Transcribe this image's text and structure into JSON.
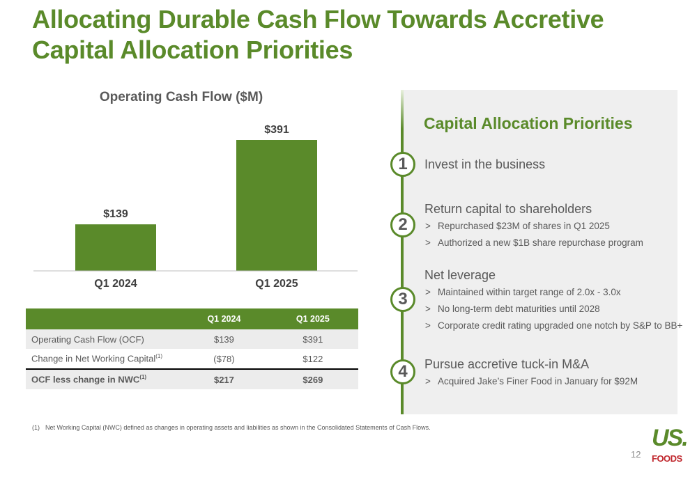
{
  "title": {
    "line1": "Allocating Durable Cash Flow Towards Accretive",
    "line2": "Capital Allocation Priorities"
  },
  "chart_data": {
    "type": "bar",
    "title": "Operating Cash Flow ($M)",
    "categories": [
      "Q1 2024",
      "Q1 2025"
    ],
    "values": [
      139,
      391
    ],
    "data_labels": [
      "$139",
      "$391"
    ],
    "xlabel": "",
    "ylabel": "",
    "ylim": [
      0,
      391
    ],
    "grid": false,
    "bar_color": "#5a8a2a"
  },
  "table": {
    "headers": [
      "",
      "Q1 2024",
      "Q1 2025"
    ],
    "rows": [
      {
        "label": "Operating Cash Flow (OCF)",
        "sup": "",
        "q1_2024": "$139",
        "q1_2025": "$391"
      },
      {
        "label": "Change in Net Working Capital",
        "sup": "(1)",
        "q1_2024": "($78)",
        "q1_2025": "$122"
      },
      {
        "label": "OCF less change in NWC",
        "sup": "(1)",
        "q1_2024": "$217",
        "q1_2025": "$269"
      }
    ]
  },
  "footnote": {
    "number": "(1)",
    "text": "Net Working Capital (NWC) defined as changes in operating assets and liabilities as shown in the Consolidated Statements of Cash Flows."
  },
  "priorities": {
    "title": "Capital Allocation Priorities",
    "items": [
      {
        "number": "1",
        "heading": "Invest in the business",
        "bullets": []
      },
      {
        "number": "2",
        "heading": "Return capital to shareholders",
        "bullets": [
          "Repurchased $23M of shares in Q1 2025",
          "Authorized a new $1B share repurchase program"
        ]
      },
      {
        "number": "3",
        "heading": "Net leverage",
        "bullets": [
          "Maintained within target range of 2.0x - 3.0x",
          "No long-term debt maturities until 2028",
          "Corporate credit rating upgraded one notch by S&P to BB+"
        ]
      },
      {
        "number": "4",
        "heading": "Pursue accretive tuck-in M&A",
        "bullets": [
          "Acquired Jake’s Finer Food in January for $92M"
        ]
      }
    ],
    "bullet_marker": ">"
  },
  "page_number": "12",
  "logo": {
    "line1": "US.",
    "line2": "FOODS"
  },
  "colors": {
    "accent": "#5a8a2a",
    "panel_bg": "#efefef",
    "logo_red": "#c0282e"
  }
}
